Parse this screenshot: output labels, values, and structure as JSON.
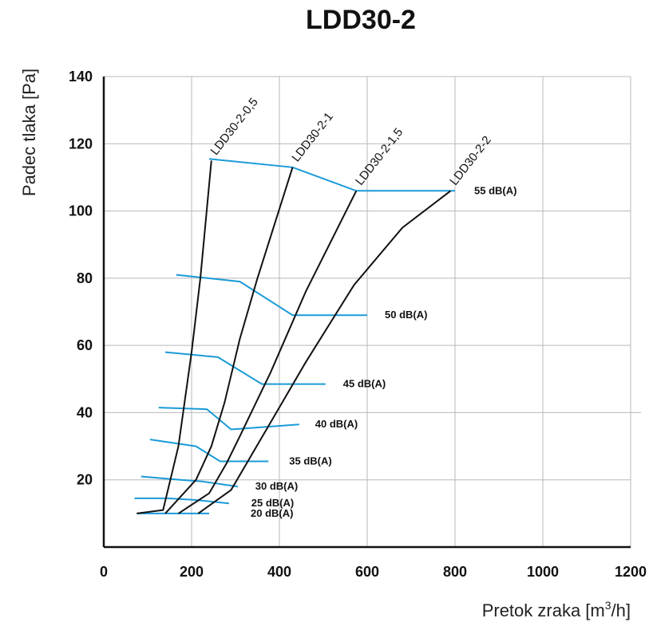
{
  "chart_data": {
    "type": "line",
    "title": "LDD30-2",
    "ylabel": "Padec tlaka  [Pa]",
    "xlabel": {
      "pre": "Pretok zraka [m",
      "sup": "3",
      "post": "/h]"
    },
    "xlim": [
      0,
      1200
    ],
    "ylim": [
      0,
      140
    ],
    "x_ticks": [
      0,
      200,
      400,
      600,
      800,
      1000,
      1200
    ],
    "y_ticks": [
      20,
      40,
      60,
      80,
      100,
      120,
      140
    ],
    "x_tick_labels": [
      "0",
      "200",
      "400",
      "600",
      "800",
      "1000",
      "1200"
    ],
    "y_tick_labels": [
      "20",
      "40",
      "60",
      "80",
      "100",
      "120",
      "140"
    ],
    "grid": true,
    "curve_color": "#111111",
    "iso_color": "#1a9bd7",
    "series": [
      {
        "name": "LDD30-2-0,5",
        "points": [
          [
            75,
            10
          ],
          [
            135,
            11
          ],
          [
            170,
            30
          ],
          [
            200,
            58
          ],
          [
            220,
            80
          ],
          [
            245,
            115
          ]
        ]
      },
      {
        "name": "LDD30-2-1",
        "points": [
          [
            140,
            10
          ],
          [
            210,
            20
          ],
          [
            245,
            30
          ],
          [
            275,
            43
          ],
          [
            310,
            62
          ],
          [
            350,
            80
          ],
          [
            430,
            113
          ]
        ]
      },
      {
        "name": "LDD30-2-1,5",
        "points": [
          [
            170,
            10
          ],
          [
            240,
            16
          ],
          [
            280,
            25
          ],
          [
            310,
            33
          ],
          [
            380,
            52
          ],
          [
            460,
            76
          ],
          [
            575,
            106
          ]
        ]
      },
      {
        "name": "LDD30-2-2",
        "points": [
          [
            215,
            10
          ],
          [
            290,
            17
          ],
          [
            375,
            36
          ],
          [
            460,
            55
          ],
          [
            570,
            78
          ],
          [
            680,
            95
          ],
          [
            790,
            106
          ]
        ]
      }
    ],
    "noise_lines": [
      {
        "label": "20 dB(A)",
        "points": [
          [
            75,
            10
          ],
          [
            170,
            10
          ],
          [
            240,
            10
          ]
        ]
      },
      {
        "label": "25 dB(A)",
        "points": [
          [
            70,
            14.5
          ],
          [
            145,
            14.5
          ],
          [
            210,
            14
          ],
          [
            285,
            13
          ]
        ]
      },
      {
        "label": "30 dB(A)",
        "points": [
          [
            85,
            21
          ],
          [
            175,
            20
          ],
          [
            225,
            19.5
          ],
          [
            305,
            18
          ]
        ]
      },
      {
        "label": "35 dB(A)",
        "points": [
          [
            105,
            32
          ],
          [
            210,
            30
          ],
          [
            265,
            25.5
          ],
          [
            375,
            25.5
          ]
        ]
      },
      {
        "label": "40 dB(A)",
        "points": [
          [
            125,
            41.5
          ],
          [
            235,
            41
          ],
          [
            290,
            35
          ],
          [
            445,
            36.5
          ]
        ]
      },
      {
        "label": "45 dB(A)",
        "points": [
          [
            140,
            58
          ],
          [
            260,
            56.5
          ],
          [
            360,
            48.5
          ],
          [
            505,
            48.5
          ]
        ]
      },
      {
        "label": "50 dB(A)",
        "points": [
          [
            165,
            81
          ],
          [
            310,
            79
          ],
          [
            430,
            69
          ],
          [
            600,
            69
          ]
        ]
      },
      {
        "label": "55 dB(A)",
        "points": [
          [
            240,
            115.5
          ],
          [
            430,
            113
          ],
          [
            575,
            106
          ],
          [
            800,
            106
          ]
        ]
      }
    ]
  }
}
